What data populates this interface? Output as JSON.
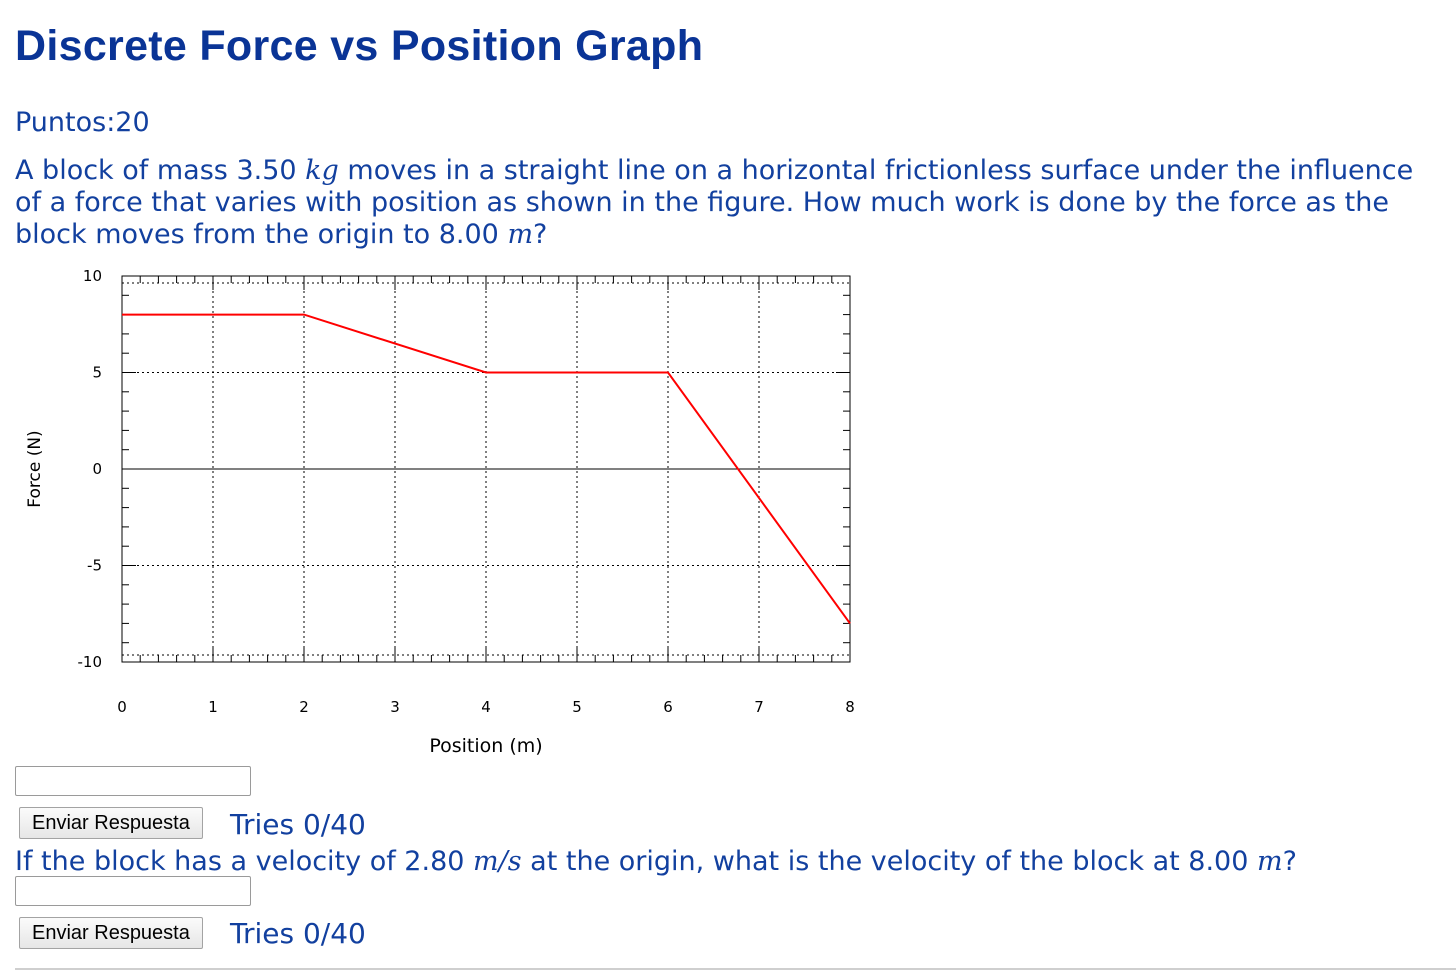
{
  "title": "Discrete Force vs Position Graph",
  "points": "Puntos:20",
  "question1": {
    "pre": "A block of mass 3.50 ",
    "unit1": "kg",
    "mid": " moves in a straight line on a horizontal frictionless surface under the influence of a force that varies with position as shown in the figure. How much work is done by the force as the block moves from the origin to 8.00 ",
    "unit2": "m",
    "post": "?"
  },
  "answer1": {
    "value": "",
    "button": "Enviar Respuesta",
    "tries": "Tries 0/40"
  },
  "question2": {
    "pre": "If the block has a velocity of 2.80 ",
    "unit1": "m/s",
    "mid": " at the origin, what is the velocity of the block at 8.00 ",
    "unit2": "m",
    "post": "?"
  },
  "answer2": {
    "value": "",
    "button": "Enviar Respuesta",
    "tries": "Tries 0/40"
  },
  "chart_data": {
    "type": "line",
    "xlabel": "Position (m)",
    "ylabel": "Force (N)",
    "xlim": [
      0,
      8
    ],
    "ylim": [
      -10,
      10
    ],
    "xticks": [
      0,
      1,
      2,
      3,
      4,
      5,
      6,
      7,
      8
    ],
    "yticks": [
      -10,
      -5,
      0,
      5,
      10
    ],
    "grid": true,
    "series": [
      {
        "color": "#ff0000",
        "x": [
          0,
          2,
          4,
          6,
          8
        ],
        "y": [
          8,
          8,
          5,
          5,
          -8
        ]
      }
    ]
  }
}
